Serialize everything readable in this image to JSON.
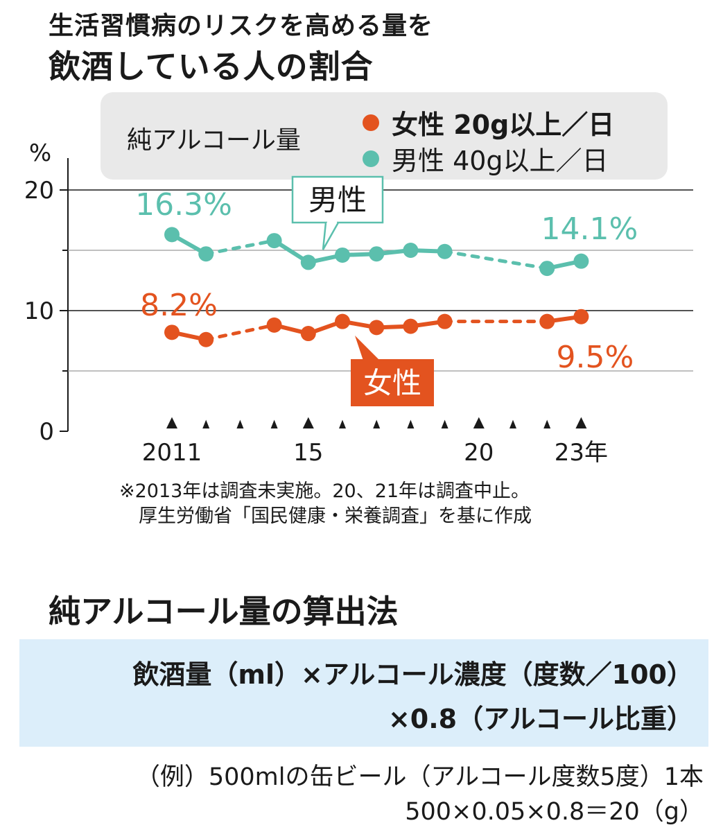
{
  "title": {
    "line1": "生活習慣病のリスクを高める量を",
    "line2": "飲酒している人の割合"
  },
  "legend": {
    "name": "純アルコール量",
    "female": "女性 20g以上／日",
    "male": "男性 40g以上／日"
  },
  "colors": {
    "female": "#e3531f",
    "male": "#5bbfad"
  },
  "chart_data": {
    "type": "line",
    "y_unit_label": "%",
    "x_unit_suffix": "年",
    "ylim": [
      0,
      20
    ],
    "y_ticks": [
      0,
      10,
      20
    ],
    "y_minor_ticks": [
      5,
      15
    ],
    "xlim": [
      2011,
      2023
    ],
    "x_tick_labels": [
      {
        "x": 2011,
        "label": "2011"
      },
      {
        "x": 2015,
        "label": "15"
      },
      {
        "x": 2020,
        "label": "20"
      },
      {
        "x": 2023,
        "label": "23年"
      }
    ],
    "series": [
      {
        "name": "男性",
        "key": "male",
        "points": [
          {
            "x": 2011,
            "y": 16.3
          },
          {
            "x": 2012,
            "y": 14.7
          },
          {
            "x": 2014,
            "y": 15.8
          },
          {
            "x": 2015,
            "y": 14.0
          },
          {
            "x": 2016,
            "y": 14.6
          },
          {
            "x": 2017,
            "y": 14.7
          },
          {
            "x": 2018,
            "y": 15.0
          },
          {
            "x": 2019,
            "y": 14.9
          },
          {
            "x": 2022,
            "y": 13.5
          },
          {
            "x": 2023,
            "y": 14.1
          }
        ]
      },
      {
        "name": "女性",
        "key": "female",
        "points": [
          {
            "x": 2011,
            "y": 8.2
          },
          {
            "x": 2012,
            "y": 7.6
          },
          {
            "x": 2014,
            "y": 8.8
          },
          {
            "x": 2015,
            "y": 8.1
          },
          {
            "x": 2016,
            "y": 9.1
          },
          {
            "x": 2017,
            "y": 8.6
          },
          {
            "x": 2018,
            "y": 8.7
          },
          {
            "x": 2019,
            "y": 9.1
          },
          {
            "x": 2022,
            "y": 9.1
          },
          {
            "x": 2023,
            "y": 9.5
          }
        ]
      }
    ],
    "annotations": {
      "male_start": "16.3%",
      "male_end": "14.1%",
      "female_start": "8.2%",
      "female_end": "9.5%",
      "male_label": "男性",
      "female_label": "女性"
    }
  },
  "notes": {
    "line1": "※2013年は調査未実施。20、21年は調査中止。",
    "line2": "厚生労働省「国民健康・栄養調査」を基に作成"
  },
  "calc": {
    "title": "純アルコール量の算出法",
    "formula_line1": "飲酒量（ml）×アルコール濃度（度数／100）",
    "formula_line2": "×0.8（アルコール比重）",
    "example_line1": "（例）500mlの缶ビール（アルコール度数5度）1本",
    "example_line2": "500×0.05×0.8＝20（g）"
  }
}
